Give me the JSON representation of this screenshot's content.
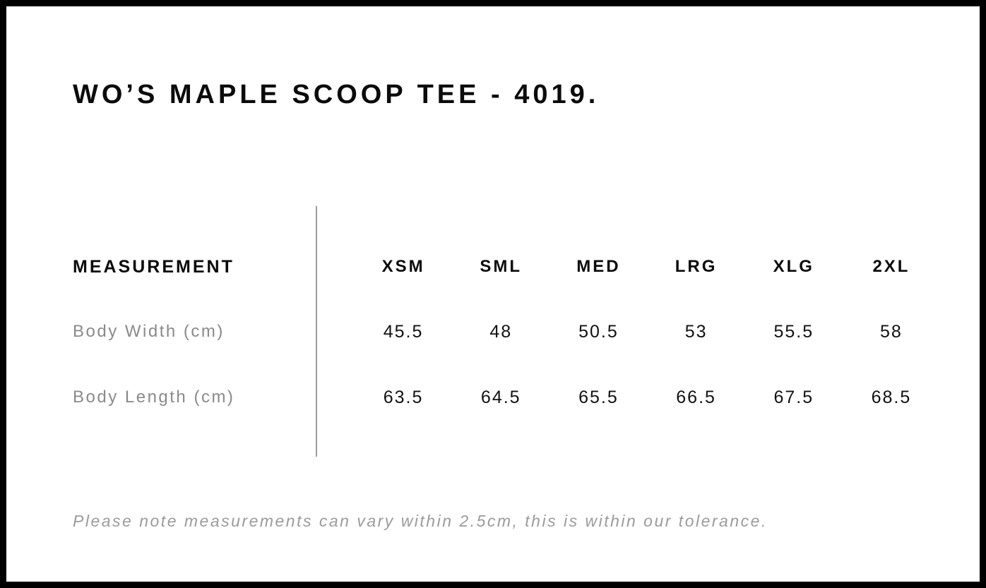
{
  "title": "WO’S MAPLE SCOOP TEE - 4019.",
  "table": {
    "header": {
      "measurement": "MEASUREMENT",
      "sizes": [
        "XSM",
        "SML",
        "MED",
        "LRG",
        "XLG",
        "2XL"
      ]
    },
    "rows": [
      {
        "label": "Body Width (cm)",
        "values": [
          "45.5",
          "48",
          "50.5",
          "53",
          "55.5",
          "58"
        ]
      },
      {
        "label": "Body Length (cm)",
        "values": [
          "63.5",
          "64.5",
          "65.5",
          "66.5",
          "67.5",
          "68.5"
        ]
      }
    ]
  },
  "note": "Please note measurements can vary within 2.5cm, this is within our tolerance.",
  "colors": {
    "border": "#000000",
    "background": "#ffffff",
    "heading_text": "#0b0b0b",
    "value_text": "#111111",
    "label_gray": "#8a8a8a",
    "note_gray": "#9b9b9b",
    "divider_gray": "#9d9d9d"
  }
}
